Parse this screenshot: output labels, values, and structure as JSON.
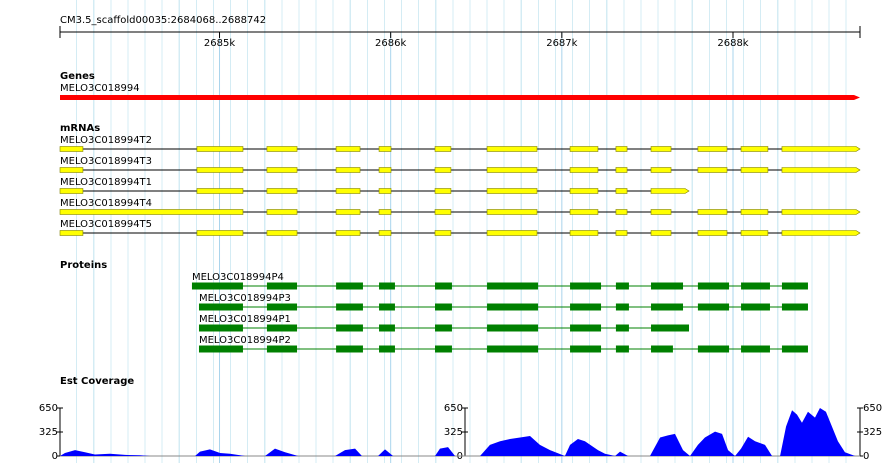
{
  "ruler": {
    "title": "CM3.5_scaffold00035:2684068..2688742",
    "xlim": [
      2684068,
      2688742
    ],
    "xticks": [
      {
        "value": 2685000,
        "label": "2685k"
      },
      {
        "value": 2686000,
        "label": "2686k"
      },
      {
        "value": 2687000,
        "label": "2687k"
      },
      {
        "value": 2688000,
        "label": "2688k"
      }
    ]
  },
  "tracks": {
    "genes": {
      "label": "Genes",
      "color": "#ff0000",
      "features": [
        {
          "name": "MELO3C018994",
          "start": 2684068,
          "end": 2688742
        }
      ]
    },
    "mrnas": {
      "label": "mRNAs",
      "color": "#ffff00",
      "features": [
        {
          "name": "MELO3C018994T2",
          "exons": [
            [
              2684068,
              2684202
            ],
            [
              2684868,
              2685137
            ],
            [
              2685277,
              2685453
            ],
            [
              2685681,
              2685821
            ],
            [
              2685932,
              2686002
            ],
            [
              2686259,
              2686352
            ],
            [
              2686563,
              2686855
            ],
            [
              2687048,
              2687211
            ],
            [
              2687316,
              2687381
            ],
            [
              2687521,
              2687638
            ],
            [
              2687795,
              2687965
            ],
            [
              2688047,
              2688204
            ],
            [
              2688286,
              2688742
            ]
          ]
        },
        {
          "name": "MELO3C018994T3",
          "exons": [
            [
              2684068,
              2684202
            ],
            [
              2684868,
              2685137
            ],
            [
              2685277,
              2685453
            ],
            [
              2685681,
              2685821
            ],
            [
              2685932,
              2686002
            ],
            [
              2686259,
              2686352
            ],
            [
              2686563,
              2686855
            ],
            [
              2687048,
              2687211
            ],
            [
              2687316,
              2687381
            ],
            [
              2687521,
              2687638
            ],
            [
              2687795,
              2687965
            ],
            [
              2688047,
              2688204
            ],
            [
              2688286,
              2688742
            ]
          ]
        },
        {
          "name": "MELO3C018994T1",
          "exons": [
            [
              2684068,
              2684202
            ],
            [
              2684868,
              2685137
            ],
            [
              2685277,
              2685453
            ],
            [
              2685681,
              2685821
            ],
            [
              2685932,
              2686002
            ],
            [
              2686259,
              2686352
            ],
            [
              2686563,
              2686855
            ],
            [
              2687048,
              2687211
            ],
            [
              2687316,
              2687381
            ],
            [
              2687521,
              2687743
            ]
          ]
        },
        {
          "name": "MELO3C018994T4",
          "exons": [
            [
              2684068,
              2685137
            ],
            [
              2685277,
              2685453
            ],
            [
              2685681,
              2685821
            ],
            [
              2685932,
              2686002
            ],
            [
              2686259,
              2686352
            ],
            [
              2686563,
              2686855
            ],
            [
              2687048,
              2687211
            ],
            [
              2687316,
              2687381
            ],
            [
              2687521,
              2687638
            ],
            [
              2687795,
              2687965
            ],
            [
              2688047,
              2688204
            ],
            [
              2688286,
              2688742
            ]
          ]
        },
        {
          "name": "MELO3C018994T5",
          "exons": [
            [
              2684068,
              2684202
            ],
            [
              2684868,
              2685137
            ],
            [
              2685277,
              2685453
            ],
            [
              2685681,
              2685821
            ],
            [
              2685932,
              2686002
            ],
            [
              2686259,
              2686352
            ],
            [
              2686563,
              2686855
            ],
            [
              2687048,
              2687211
            ],
            [
              2687316,
              2687381
            ],
            [
              2687521,
              2687638
            ],
            [
              2687795,
              2687965
            ],
            [
              2688047,
              2688204
            ],
            [
              2688286,
              2688742
            ]
          ]
        }
      ]
    },
    "proteins": {
      "label": "Proteins",
      "color": "#008000",
      "features": [
        {
          "name": "MELO3C018994P4",
          "exons": [
            [
              2684839,
              2685137
            ],
            [
              2685277,
              2685453
            ],
            [
              2685681,
              2685838
            ],
            [
              2685932,
              2686025
            ],
            [
              2686259,
              2686358
            ],
            [
              2686563,
              2686861
            ],
            [
              2687048,
              2687229
            ],
            [
              2687316,
              2687392
            ],
            [
              2687521,
              2687708
            ],
            [
              2687795,
              2687977
            ],
            [
              2688047,
              2688216
            ],
            [
              2688286,
              2688438
            ]
          ]
        },
        {
          "name": "MELO3C018994P3",
          "exons": [
            [
              2684880,
              2685137
            ],
            [
              2685277,
              2685453
            ],
            [
              2685681,
              2685838
            ],
            [
              2685932,
              2686025
            ],
            [
              2686259,
              2686358
            ],
            [
              2686563,
              2686861
            ],
            [
              2687048,
              2687229
            ],
            [
              2687316,
              2687392
            ],
            [
              2687521,
              2687708
            ],
            [
              2687795,
              2687977
            ],
            [
              2688047,
              2688216
            ],
            [
              2688286,
              2688438
            ]
          ]
        },
        {
          "name": "MELO3C018994P1",
          "exons": [
            [
              2684880,
              2685137
            ],
            [
              2685277,
              2685453
            ],
            [
              2685681,
              2685838
            ],
            [
              2685932,
              2686025
            ],
            [
              2686259,
              2686358
            ],
            [
              2686563,
              2686861
            ],
            [
              2687048,
              2687229
            ],
            [
              2687316,
              2687392
            ],
            [
              2687521,
              2687743
            ]
          ]
        },
        {
          "name": "MELO3C018994P2",
          "exons": [
            [
              2684880,
              2685137
            ],
            [
              2685277,
              2685453
            ],
            [
              2685681,
              2685838
            ],
            [
              2685932,
              2686025
            ],
            [
              2686259,
              2686358
            ],
            [
              2686563,
              2686861
            ],
            [
              2687048,
              2687229
            ],
            [
              2687316,
              2687392
            ],
            [
              2687521,
              2687649
            ],
            [
              2687795,
              2687977
            ],
            [
              2688047,
              2688216
            ],
            [
              2688286,
              2688438
            ]
          ]
        }
      ]
    },
    "coverage": {
      "label": "Est Coverage",
      "color": "#0000ff",
      "ylim": [
        0,
        650
      ],
      "yticks": [
        0,
        325,
        650
      ],
      "x": [
        2684068,
        2684097,
        2684156,
        2684214,
        2684272,
        2684360,
        2684448,
        2684535,
        2684594,
        2684857,
        2684886,
        2684944,
        2685003,
        2685061,
        2685149,
        2685266,
        2685324,
        2685383,
        2685459,
        2685675,
        2685733,
        2685792,
        2685832,
        2685926,
        2685967,
        2686014,
        2686259,
        2686288,
        2686335,
        2686376,
        2686522,
        2686580,
        2686639,
        2686697,
        2686756,
        2686814,
        2686872,
        2686931,
        2687018,
        2687048,
        2687094,
        2687135,
        2687211,
        2687252,
        2687311,
        2687340,
        2687387,
        2687515,
        2687574,
        2687620,
        2687661,
        2687708,
        2687749,
        2687795,
        2687836,
        2687895,
        2687936,
        2687971,
        2688012,
        2688047,
        2688088,
        2688129,
        2688187,
        2688228,
        2688275,
        2688310,
        2688345,
        2688374,
        2688403,
        2688438,
        2688479,
        2688508,
        2688543,
        2688578,
        2688613,
        2688654,
        2688713,
        2688742
      ],
      "values": [
        0,
        40,
        80,
        50,
        20,
        30,
        15,
        10,
        0,
        0,
        60,
        90,
        40,
        30,
        0,
        0,
        100,
        50,
        0,
        0,
        80,
        100,
        0,
        0,
        90,
        0,
        0,
        100,
        120,
        0,
        0,
        150,
        200,
        230,
        250,
        270,
        150,
        80,
        0,
        150,
        230,
        200,
        80,
        30,
        0,
        60,
        0,
        0,
        250,
        280,
        300,
        80,
        0,
        150,
        250,
        330,
        300,
        80,
        0,
        100,
        260,
        200,
        150,
        0,
        0,
        400,
        620,
        560,
        450,
        600,
        520,
        650,
        600,
        400,
        200,
        50,
        0,
        0
      ]
    }
  }
}
